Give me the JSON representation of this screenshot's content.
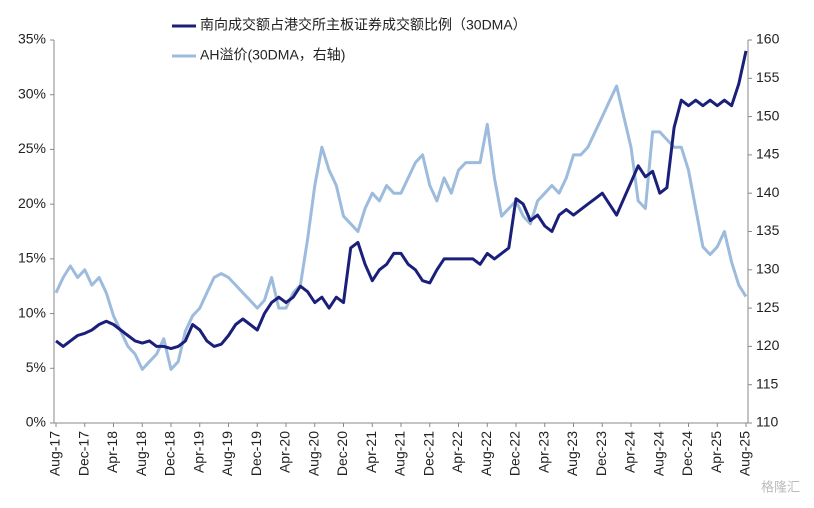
{
  "chart_data": {
    "type": "line",
    "categories": [
      "Aug-17",
      null,
      null,
      null,
      "Dec-17",
      null,
      null,
      null,
      "Apr-18",
      null,
      null,
      null,
      "Aug-18",
      null,
      null,
      null,
      "Dec-18",
      null,
      null,
      null,
      "Apr-19",
      null,
      null,
      null,
      "Aug-19",
      null,
      null,
      null,
      "Dec-19",
      null,
      null,
      null,
      "Apr-20",
      null,
      null,
      null,
      "Aug-20",
      null,
      null,
      null,
      "Dec-20",
      null,
      null,
      null,
      "Apr-21",
      null,
      null,
      null,
      "Aug-21",
      null,
      null,
      null,
      "Dec-21",
      null,
      null,
      null,
      "Apr-22",
      null,
      null,
      null,
      "Aug-22",
      null,
      null,
      null,
      "Dec-22",
      null,
      null,
      null,
      "Apr-23",
      null,
      null,
      null,
      "Aug-23",
      null,
      null,
      null,
      "Dec-23",
      null,
      null,
      null,
      "Apr-24",
      null,
      null,
      null,
      "Aug-24",
      null,
      null,
      null,
      "Dec-24",
      null,
      null,
      null,
      "Apr-25",
      null,
      null,
      null,
      "Aug-25"
    ],
    "series": [
      {
        "name": "南向成交额占港交所主板证券成交额比例（30DMA）",
        "color": "#1a1f7a",
        "values": [
          7.5,
          7.0,
          7.5,
          8.0,
          8.2,
          8.5,
          9.0,
          9.3,
          9.0,
          8.5,
          8.0,
          7.5,
          7.3,
          7.5,
          7.0,
          7.0,
          6.8,
          7.0,
          7.5,
          9.0,
          8.5,
          7.5,
          7.0,
          7.2,
          8.0,
          9.0,
          9.5,
          9.0,
          8.5,
          10.0,
          11.0,
          11.5,
          11.0,
          11.5,
          12.5,
          12.0,
          11.0,
          11.5,
          10.5,
          11.5,
          11.0,
          16.0,
          16.5,
          14.5,
          13.0,
          14.0,
          14.5,
          15.5,
          15.5,
          14.5,
          14.0,
          13.0,
          12.8,
          14.0,
          15.0,
          15.0,
          15.0,
          15.0,
          15.0,
          14.5,
          15.5,
          15.0,
          15.5,
          16.0,
          20.5,
          20.0,
          18.5,
          19.0,
          18.0,
          17.5,
          19.0,
          19.5,
          19.0,
          19.5,
          20.0,
          20.5,
          21.0,
          20.0,
          19.0,
          20.5,
          22.0,
          23.5,
          22.5,
          23.0,
          21.0,
          21.5,
          27.0,
          29.5,
          29.0,
          29.5,
          29.0,
          29.5,
          29.0,
          29.5,
          29.0,
          31.0,
          34.0
        ]
      },
      {
        "name": "AH溢价(30DMA，右轴)",
        "color": "#9dbbdc",
        "axis": "y2",
        "values": [
          127,
          129,
          130.5,
          129,
          130,
          128,
          129,
          127,
          124,
          122,
          120,
          119,
          117,
          118,
          119,
          121,
          117,
          118,
          122,
          124,
          125,
          127,
          129,
          129.5,
          129,
          128,
          127,
          126,
          125,
          126,
          129,
          125,
          125,
          127,
          128,
          134,
          141,
          146,
          143,
          141,
          137,
          136,
          135,
          138,
          140,
          139,
          141,
          140,
          140,
          142,
          144,
          145,
          141,
          139,
          142,
          140,
          143,
          144,
          144,
          144,
          149,
          142,
          137,
          138,
          139,
          137,
          136,
          139,
          140,
          141,
          140,
          142,
          145,
          145,
          146,
          148,
          150,
          152,
          154,
          150,
          146,
          139,
          138,
          148,
          148,
          147,
          146,
          146,
          143,
          138,
          133,
          132,
          133,
          135,
          131,
          128,
          126.5
        ]
      }
    ],
    "ylim": [
      0,
      35
    ],
    "yticks": [
      {
        "value": 0,
        "label": "0%"
      },
      {
        "value": 5,
        "label": "5%"
      },
      {
        "value": 10,
        "label": "10%"
      },
      {
        "value": 15,
        "label": "15%"
      },
      {
        "value": 20,
        "label": "20%"
      },
      {
        "value": 25,
        "label": "25%"
      },
      {
        "value": 30,
        "label": "30%"
      },
      {
        "value": 35,
        "label": "35%"
      }
    ],
    "y2lim": [
      110,
      160
    ],
    "y2ticks": [
      110,
      115,
      120,
      125,
      130,
      135,
      140,
      145,
      150,
      155,
      160
    ],
    "grid": false,
    "watermark": "格隆汇"
  }
}
